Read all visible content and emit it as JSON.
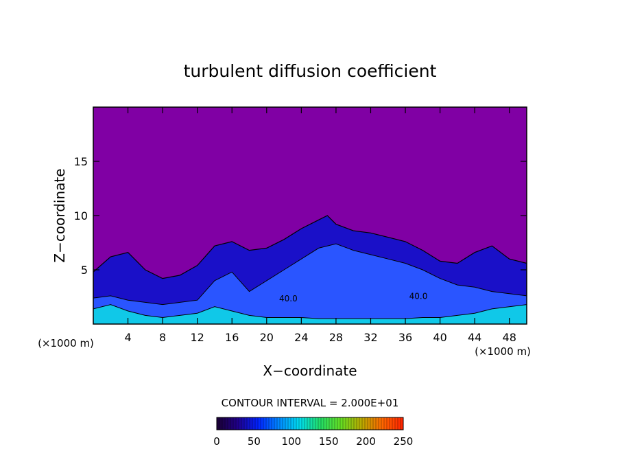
{
  "chart_data": {
    "type": "heatmap",
    "title": "turbulent diffusion coefficient",
    "xlabel": "X−coordinate",
    "ylabel": "Z−coordinate",
    "x_unit_left": "(×1000 m)",
    "x_unit_right": "(×1000 m)",
    "xlim": [
      0,
      50
    ],
    "ylim": [
      0,
      20
    ],
    "x_ticks": [
      4,
      8,
      12,
      16,
      20,
      24,
      28,
      32,
      36,
      40,
      44,
      48
    ],
    "x_tick_labels": [
      "4",
      "8",
      "12",
      "16",
      "20",
      "24",
      "28",
      "32",
      "36",
      "40",
      "44",
      "48"
    ],
    "y_ticks": [
      5,
      10,
      15
    ],
    "y_tick_labels": [
      "5",
      "10",
      "15"
    ],
    "contour_interval_text": "CONTOUR INTERVAL = 2.000E+01",
    "contour_labels": [
      {
        "text": "40.0",
        "x": 22.5,
        "z": 2.1
      },
      {
        "text": "40.0",
        "x": 37.5,
        "z": 2.3
      }
    ],
    "colorbar": {
      "min": 0,
      "max": 250,
      "ticks": [
        0,
        50,
        100,
        150,
        200,
        250
      ],
      "tick_labels": [
        "0",
        "50",
        "100",
        "150",
        "200",
        "250"
      ],
      "stops": [
        "#1a0033",
        "#20008a",
        "#0022ff",
        "#0088ff",
        "#00ddee",
        "#22dd66",
        "#66dd22",
        "#bbaa00",
        "#ff6600",
        "#ff2200"
      ]
    },
    "background_color": "#8000a4",
    "turbulent_layer_top": [
      [
        0,
        4.8
      ],
      [
        2,
        6.2
      ],
      [
        4,
        6.6
      ],
      [
        6,
        5.0
      ],
      [
        8,
        4.2
      ],
      [
        10,
        4.5
      ],
      [
        12,
        5.4
      ],
      [
        14,
        7.2
      ],
      [
        16,
        7.6
      ],
      [
        18,
        6.8
      ],
      [
        20,
        7.0
      ],
      [
        22,
        7.8
      ],
      [
        24,
        8.8
      ],
      [
        26,
        9.6
      ],
      [
        27,
        10.0
      ],
      [
        28,
        9.2
      ],
      [
        30,
        8.6
      ],
      [
        32,
        8.4
      ],
      [
        34,
        8.0
      ],
      [
        36,
        7.6
      ],
      [
        38,
        6.8
      ],
      [
        40,
        5.8
      ],
      [
        42,
        5.6
      ],
      [
        44,
        6.6
      ],
      [
        46,
        7.2
      ],
      [
        48,
        6.0
      ],
      [
        50,
        5.6
      ]
    ],
    "inner_region_top": [
      [
        0,
        2.4
      ],
      [
        2,
        2.6
      ],
      [
        4,
        2.2
      ],
      [
        6,
        2.0
      ],
      [
        8,
        1.8
      ],
      [
        10,
        2.0
      ],
      [
        12,
        2.2
      ],
      [
        14,
        4.0
      ],
      [
        16,
        4.8
      ],
      [
        18,
        3.0
      ],
      [
        20,
        4.0
      ],
      [
        22,
        5.0
      ],
      [
        24,
        6.0
      ],
      [
        26,
        7.0
      ],
      [
        28,
        7.4
      ],
      [
        30,
        6.8
      ],
      [
        32,
        6.4
      ],
      [
        34,
        6.0
      ],
      [
        36,
        5.6
      ],
      [
        38,
        5.0
      ],
      [
        40,
        4.2
      ],
      [
        42,
        3.6
      ],
      [
        44,
        3.4
      ],
      [
        46,
        3.0
      ],
      [
        48,
        2.8
      ],
      [
        50,
        2.6
      ]
    ],
    "surface_layer_top": [
      [
        0,
        1.4
      ],
      [
        2,
        1.8
      ],
      [
        4,
        1.2
      ],
      [
        6,
        0.8
      ],
      [
        8,
        0.6
      ],
      [
        10,
        0.8
      ],
      [
        12,
        1.0
      ],
      [
        14,
        1.6
      ],
      [
        16,
        1.2
      ],
      [
        18,
        0.8
      ],
      [
        20,
        0.6
      ],
      [
        22,
        0.6
      ],
      [
        24,
        0.6
      ],
      [
        26,
        0.5
      ],
      [
        28,
        0.5
      ],
      [
        30,
        0.5
      ],
      [
        32,
        0.5
      ],
      [
        34,
        0.5
      ],
      [
        36,
        0.5
      ],
      [
        38,
        0.6
      ],
      [
        40,
        0.6
      ],
      [
        42,
        0.8
      ],
      [
        44,
        1.0
      ],
      [
        46,
        1.4
      ],
      [
        48,
        1.6
      ],
      [
        50,
        1.8
      ]
    ]
  }
}
